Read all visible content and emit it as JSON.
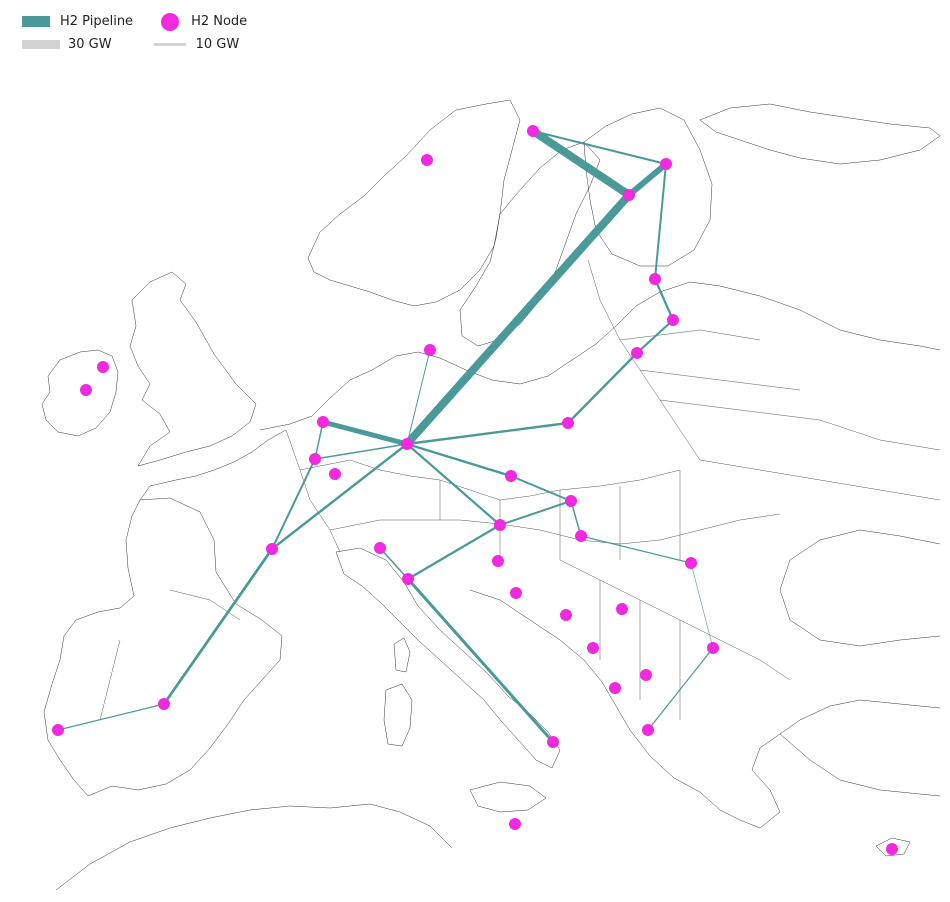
{
  "legend": {
    "pipeline_label": "H2 Pipeline",
    "node_label": "H2 Node",
    "scale_30_label": "30 GW",
    "scale_10_label": "10 GW"
  },
  "colors": {
    "pipeline": "#4a9a9a",
    "node": "#f22adf",
    "scale": "#d3d3d3",
    "coast": "#333333"
  }
}
